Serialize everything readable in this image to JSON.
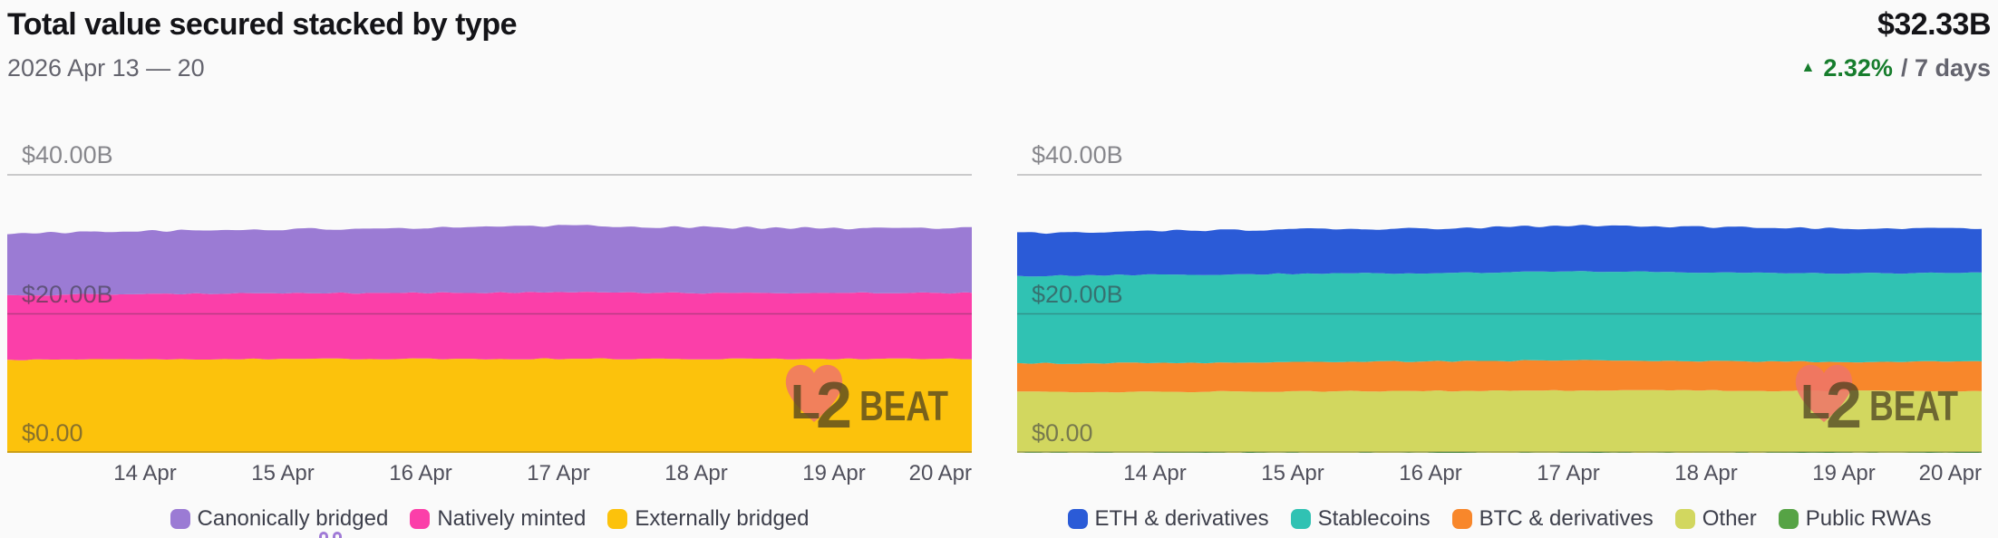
{
  "header": {
    "title": "Total value secured stacked by type",
    "date_range": "2026 Apr 13 — 20",
    "total_value": "$32.33B",
    "change_icon": "▲",
    "change_percent": "2.32%",
    "change_period": "/ 7 days",
    "change_color": "#177d2d"
  },
  "watermark_text": "L2BEAT",
  "chart_data": [
    {
      "type": "area",
      "stacked": true,
      "x": [
        "13 Apr",
        "14 Apr",
        "15 Apr",
        "16 Apr",
        "17 Apr",
        "18 Apr",
        "19 Apr",
        "20 Apr"
      ],
      "x_ticks": [
        "14 Apr",
        "15 Apr",
        "16 Apr",
        "17 Apr",
        "18 Apr",
        "19 Apr",
        "20 Apr"
      ],
      "y_ticks": [
        {
          "label": "$40.00B",
          "value": 40
        },
        {
          "label": "$20.00B",
          "value": 20
        },
        {
          "label": "$0.00",
          "value": 0
        }
      ],
      "ylim": [
        0,
        50.8
      ],
      "unit": "$B",
      "legend_position": "bottom",
      "grid": true,
      "series": [
        {
          "name": "Canonically bridged",
          "color": "#9b7bd4",
          "values": [
            8.9,
            9.05,
            9.2,
            9.3,
            9.6,
            9.45,
            9.3,
            9.33
          ]
        },
        {
          "name": "Natively minted",
          "color": "#fb3fa9",
          "values": [
            9.3,
            9.4,
            9.45,
            9.5,
            9.55,
            9.5,
            9.5,
            9.5
          ]
        },
        {
          "name": "Externally bridged",
          "color": "#fcc20c",
          "values": [
            13.4,
            13.45,
            13.5,
            13.5,
            13.55,
            13.5,
            13.5,
            13.5
          ]
        }
      ],
      "stack_bottom_up": [
        2,
        1,
        0
      ]
    },
    {
      "type": "area",
      "stacked": true,
      "x": [
        "13 Apr",
        "14 Apr",
        "15 Apr",
        "16 Apr",
        "17 Apr",
        "18 Apr",
        "19 Apr",
        "20 Apr"
      ],
      "x_ticks": [
        "14 Apr",
        "15 Apr",
        "16 Apr",
        "17 Apr",
        "18 Apr",
        "19 Apr",
        "20 Apr"
      ],
      "y_ticks": [
        {
          "label": "$40.00B",
          "value": 40
        },
        {
          "label": "$20.00B",
          "value": 20
        },
        {
          "label": "$0.00",
          "value": 0
        }
      ],
      "ylim": [
        0,
        50.8
      ],
      "unit": "$B",
      "legend_position": "bottom",
      "grid": true,
      "series": [
        {
          "name": "ETH & derivatives",
          "color": "#2b5bd7",
          "values": [
            6.15,
            6.3,
            6.4,
            6.45,
            6.6,
            6.45,
            6.45,
            6.45
          ]
        },
        {
          "name": "Stablecoins",
          "color": "#30c2b3",
          "values": [
            12.6,
            12.65,
            12.7,
            12.7,
            12.8,
            12.8,
            12.75,
            12.78
          ]
        },
        {
          "name": "BTC & derivatives",
          "color": "#f8872b",
          "values": [
            4.1,
            4.15,
            4.2,
            4.25,
            4.3,
            4.25,
            4.2,
            4.2
          ]
        },
        {
          "name": "Other",
          "color": "#d2d75f",
          "values": [
            8.7,
            8.75,
            8.8,
            8.85,
            8.95,
            8.9,
            8.85,
            8.85
          ]
        },
        {
          "name": "Public RWAs",
          "color": "#56a345",
          "values": [
            0.05,
            0.05,
            0.05,
            0.05,
            0.05,
            0.05,
            0.05,
            0.05
          ]
        }
      ],
      "stack_bottom_up": [
        4,
        3,
        2,
        1,
        0
      ]
    }
  ]
}
